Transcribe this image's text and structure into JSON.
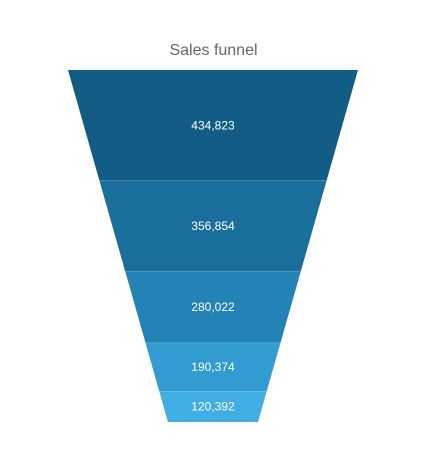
{
  "chart_data": {
    "type": "funnel",
    "title": "Sales funnel",
    "values": [
      434823,
      356854,
      280022,
      190374,
      120392
    ],
    "labels": [
      "434,823",
      "356,854",
      "280,022",
      "190,374",
      "120,392"
    ],
    "colors": [
      "#125d86",
      "#1a6e9b",
      "#2382b6",
      "#329cd2",
      "#40ade3"
    ]
  }
}
